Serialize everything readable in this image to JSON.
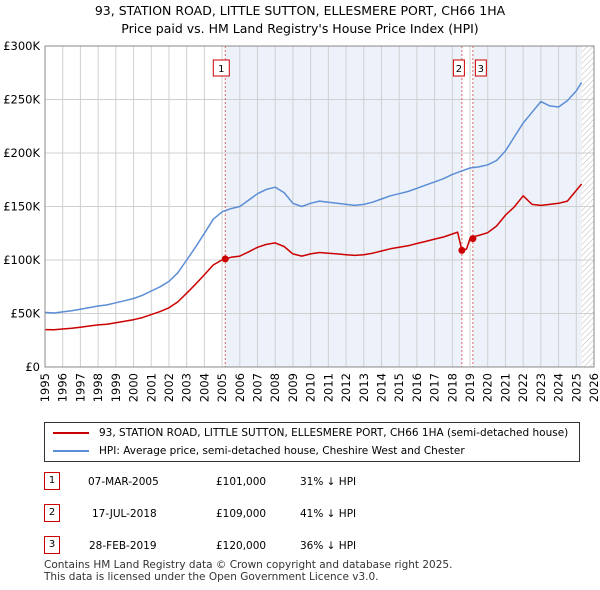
{
  "title_line1": "93, STATION ROAD, LITTLE SUTTON, ELLESMERE PORT, CH66 1HA",
  "title_line2": "Price paid vs. HM Land Registry's House Price Index (HPI)",
  "colors": {
    "property": "#cc0000",
    "hpi": "#5b8ed6",
    "marker_line": "#e06666",
    "shade": "#dde6f5",
    "grid": "#d0d0d0",
    "badge_border": "#cc0000"
  },
  "legend": {
    "property_label": "93, STATION ROAD, LITTLE SUTTON, ELLESMERE PORT, CH66 1HA (semi-detached house)",
    "hpi_label": "HPI: Average price, semi-detached house, Cheshire West and Chester"
  },
  "sales": [
    {
      "num": "1",
      "date": "07-MAR-2005",
      "price": "£101,000",
      "pct": "31% ↓ HPI"
    },
    {
      "num": "2",
      "date": "17-JUL-2018",
      "price": "£109,000",
      "pct": "41% ↓ HPI"
    },
    {
      "num": "3",
      "date": "28-FEB-2019",
      "price": "£120,000",
      "pct": "36% ↓ HPI"
    }
  ],
  "footer_line1": "Contains HM Land Registry data © Crown copyright and database right 2025.",
  "footer_line2": "This data is licensed under the Open Government Licence v3.0.",
  "chart_data": {
    "type": "line",
    "title": "93, STATION ROAD, LITTLE SUTTON, ELLESMERE PORT, CH66 1HA",
    "subtitle": "Price paid vs. HM Land Registry's House Price Index (HPI)",
    "xlabel": "",
    "ylabel": "",
    "xlim": [
      1995,
      2026
    ],
    "ylim": [
      0,
      300000
    ],
    "x_ticks": [
      "1995",
      "1996",
      "1997",
      "1998",
      "1999",
      "2000",
      "2001",
      "2002",
      "2003",
      "2004",
      "2005",
      "2006",
      "2007",
      "2008",
      "2009",
      "2010",
      "2011",
      "2012",
      "2013",
      "2014",
      "2015",
      "2016",
      "2017",
      "2018",
      "2019",
      "2020",
      "2021",
      "2022",
      "2023",
      "2024",
      "2025",
      "2026"
    ],
    "y_ticks": [
      {
        "value": 0,
        "label": "£0"
      },
      {
        "value": 50000,
        "label": "£50K"
      },
      {
        "value": 100000,
        "label": "£100K"
      },
      {
        "value": 150000,
        "label": "£150K"
      },
      {
        "value": 200000,
        "label": "£200K"
      },
      {
        "value": 250000,
        "label": "£250K"
      },
      {
        "value": 300000,
        "label": "£300K"
      }
    ],
    "grid": true,
    "legend_position": "below",
    "series": [
      {
        "name": "HPI: Average price, semi-detached house, Cheshire West and Chester",
        "x": [
          1995.0,
          1995.5,
          1996.0,
          1996.5,
          1997.0,
          1997.5,
          1998.0,
          1998.5,
          1999.0,
          1999.5,
          2000.0,
          2000.5,
          2001.0,
          2001.5,
          2002.0,
          2002.5,
          2003.0,
          2003.5,
          2004.0,
          2004.5,
          2005.0,
          2005.5,
          2006.0,
          2006.5,
          2007.0,
          2007.5,
          2008.0,
          2008.5,
          2009.0,
          2009.5,
          2010.0,
          2010.5,
          2011.0,
          2011.5,
          2012.0,
          2012.5,
          2013.0,
          2013.5,
          2014.0,
          2014.5,
          2015.0,
          2015.5,
          2016.0,
          2016.5,
          2017.0,
          2017.5,
          2018.0,
          2018.5,
          2019.0,
          2019.5,
          2020.0,
          2020.5,
          2021.0,
          2021.5,
          2022.0,
          2022.5,
          2023.0,
          2023.5,
          2024.0,
          2024.5,
          2025.0,
          2025.3
        ],
        "y": [
          51000,
          50500,
          51500,
          52500,
          54000,
          55500,
          57000,
          58000,
          60000,
          62000,
          64000,
          67000,
          71000,
          75000,
          80000,
          88000,
          100000,
          112000,
          125000,
          138000,
          145000,
          148000,
          150000,
          156000,
          162000,
          166000,
          168000,
          163000,
          153000,
          150000,
          153000,
          155000,
          154000,
          153000,
          152000,
          151000,
          152000,
          154000,
          157000,
          160000,
          162000,
          164000,
          167000,
          170000,
          173000,
          176000,
          180000,
          183000,
          186000,
          187000,
          189000,
          193000,
          202000,
          215000,
          228000,
          238000,
          248000,
          244000,
          243000,
          249000,
          258000,
          266000
        ]
      },
      {
        "name": "93, STATION ROAD, LITTLE SUTTON, ELLESMERE PORT, CH66 1HA (semi-detached house)",
        "x": [
          1995.0,
          1995.5,
          1996.0,
          1996.5,
          1997.0,
          1997.5,
          1998.0,
          1998.5,
          1999.0,
          1999.5,
          2000.0,
          2000.5,
          2001.0,
          2001.5,
          2002.0,
          2002.5,
          2003.0,
          2003.5,
          2004.0,
          2004.5,
          2005.0,
          2005.18,
          2005.5,
          2006.0,
          2006.5,
          2007.0,
          2007.5,
          2008.0,
          2008.5,
          2009.0,
          2009.5,
          2010.0,
          2010.5,
          2011.0,
          2011.5,
          2012.0,
          2012.5,
          2013.0,
          2013.5,
          2014.0,
          2014.5,
          2015.0,
          2015.5,
          2016.0,
          2016.5,
          2017.0,
          2017.5,
          2018.0,
          2018.3,
          2018.54,
          2018.8,
          2019.0,
          2019.16,
          2019.5,
          2020.0,
          2020.5,
          2021.0,
          2021.5,
          2022.0,
          2022.5,
          2023.0,
          2023.5,
          2024.0,
          2024.5,
          2025.0,
          2025.3
        ],
        "y": [
          35000,
          34800,
          35500,
          36200,
          37200,
          38300,
          39300,
          40000,
          41400,
          42800,
          44200,
          46200,
          49000,
          51800,
          55300,
          60800,
          69000,
          77300,
          86300,
          95300,
          100100,
          101000,
          102500,
          103600,
          107700,
          111900,
          114600,
          116000,
          112600,
          105700,
          103600,
          105700,
          107000,
          106400,
          105700,
          105000,
          104300,
          105000,
          106400,
          108400,
          110500,
          111900,
          113300,
          115400,
          117400,
          119500,
          121500,
          124300,
          126000,
          109000,
          110200,
          120000,
          121700,
          123000,
          125500,
          131800,
          142000,
          149600,
          160000,
          152000,
          151000,
          152000,
          153000,
          155000,
          165000,
          171000
        ]
      }
    ],
    "sales": [
      {
        "num": "1",
        "x": 2005.18,
        "value": 101000
      },
      {
        "num": "2",
        "x": 2018.54,
        "value": 109000
      },
      {
        "num": "3",
        "x": 2019.16,
        "value": 120000
      }
    ]
  }
}
